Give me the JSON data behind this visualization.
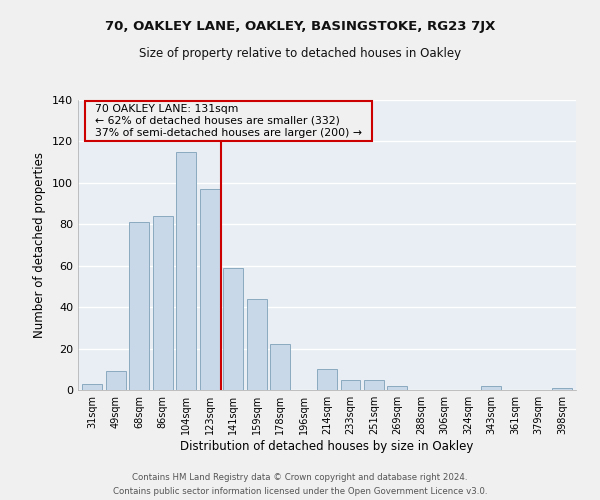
{
  "title": "70, OAKLEY LANE, OAKLEY, BASINGSTOKE, RG23 7JX",
  "subtitle": "Size of property relative to detached houses in Oakley",
  "xlabel": "Distribution of detached houses by size in Oakley",
  "ylabel": "Number of detached properties",
  "footer_line1": "Contains HM Land Registry data © Crown copyright and database right 2024.",
  "footer_line2": "Contains public sector information licensed under the Open Government Licence v3.0.",
  "bar_labels": [
    "31sqm",
    "49sqm",
    "68sqm",
    "86sqm",
    "104sqm",
    "123sqm",
    "141sqm",
    "159sqm",
    "178sqm",
    "196sqm",
    "214sqm",
    "233sqm",
    "251sqm",
    "269sqm",
    "288sqm",
    "306sqm",
    "324sqm",
    "343sqm",
    "361sqm",
    "379sqm",
    "398sqm"
  ],
  "bar_heights": [
    3,
    9,
    81,
    84,
    115,
    97,
    59,
    44,
    22,
    0,
    10,
    5,
    5,
    2,
    0,
    0,
    0,
    2,
    0,
    0,
    1
  ],
  "bar_color": "#c8d8e8",
  "bar_edge_color": "#8aaac0",
  "vline_x": 5.5,
  "vline_color": "#cc0000",
  "annotation_title": "70 OAKLEY LANE: 131sqm",
  "annotation_line1": "← 62% of detached houses are smaller (332)",
  "annotation_line2": "37% of semi-detached houses are larger (200) →",
  "annotation_box_edge": "#cc0000",
  "ylim": [
    0,
    140
  ],
  "yticks": [
    0,
    20,
    40,
    60,
    80,
    100,
    120,
    140
  ],
  "background_color": "#f0f0f0",
  "grid_color": "#ffffff",
  "plot_bg_color": "#e8eef4"
}
